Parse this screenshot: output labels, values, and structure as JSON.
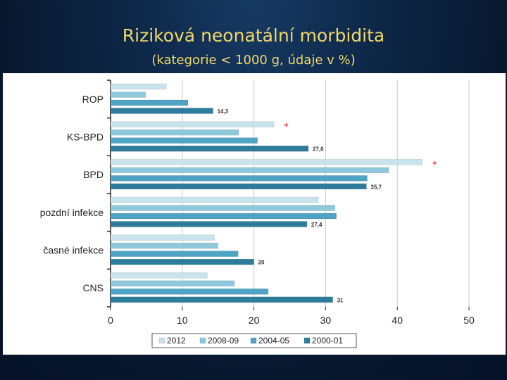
{
  "slide": {
    "title": "Riziková neonatální morbidita",
    "subtitle": "(kategorie < 1000 g, údaje v %)"
  },
  "colors": {
    "title": "#f2d86a",
    "grid": "#c8c8c8",
    "star": "#cc2222"
  },
  "chart_data": {
    "type": "bar",
    "orientation": "horizontal",
    "categories": [
      "ROP",
      "KS-BPD",
      "BPD",
      "pozdní infekce",
      "časné infekce",
      "CNS"
    ],
    "series": [
      {
        "name": "2012",
        "color": "#c9e3ec",
        "values": [
          7.8,
          22.8,
          43.5,
          29,
          14.5,
          13.5
        ]
      },
      {
        "name": "2008-09",
        "color": "#8ec8dc",
        "values": [
          4.9,
          17.9,
          38.8,
          31.3,
          15,
          17.3
        ]
      },
      {
        "name": "2004-05",
        "color": "#4fa3c5",
        "values": [
          10.8,
          20.5,
          35.8,
          31.5,
          17.8,
          22
        ]
      },
      {
        "name": "2000-01",
        "color": "#2e7c9b",
        "values": [
          14.3,
          27.6,
          35.7,
          27.4,
          20,
          31
        ]
      }
    ],
    "data_labels": [
      {
        "category": "ROP",
        "series": "2000-01",
        "text": "14,3"
      },
      {
        "category": "KS-BPD",
        "series": "2000-01",
        "text": "27,6"
      },
      {
        "category": "BPD",
        "series": "2000-01",
        "text": "35,7"
      },
      {
        "category": "pozdní infekce",
        "series": "2000-01",
        "text": "27,4"
      },
      {
        "category": "časné infekce",
        "series": "2000-01",
        "text": "20"
      },
      {
        "category": "CNS",
        "series": "2000-01",
        "text": "31"
      }
    ],
    "annotations": [
      {
        "category": "KS-BPD",
        "series": "2012",
        "text": "*"
      },
      {
        "category": "BPD",
        "series": "2012",
        "text": "*"
      }
    ],
    "xlim": [
      0,
      50
    ],
    "xticks": [
      0,
      10,
      20,
      30,
      40,
      50
    ],
    "grid": true,
    "legend_position": "bottom"
  }
}
